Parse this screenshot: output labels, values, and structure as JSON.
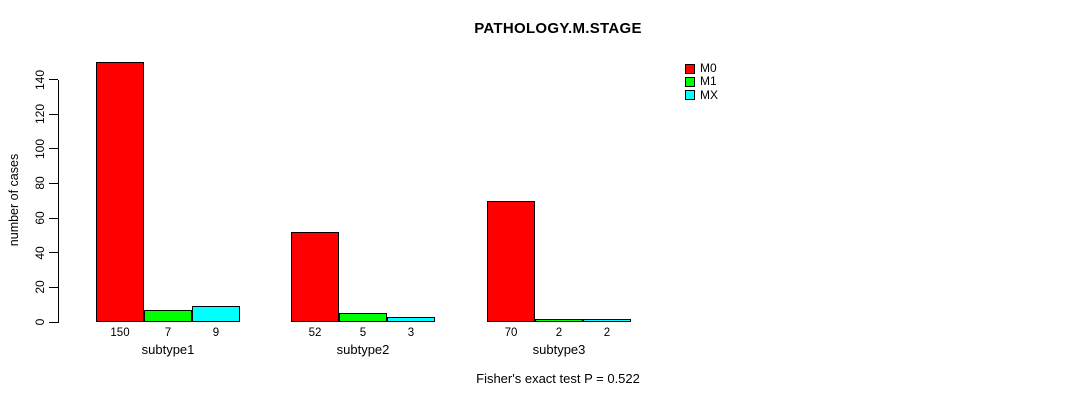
{
  "page": {
    "background": "#ffffff"
  },
  "chart_data": {
    "type": "bar",
    "title": "PATHOLOGY.M.STAGE",
    "categories": [
      "subtype1",
      "subtype2",
      "subtype3"
    ],
    "series": [
      {
        "name": "M0",
        "color": "#FF0000",
        "values": [
          150,
          52,
          70
        ]
      },
      {
        "name": "M1",
        "color": "#00FF00",
        "values": [
          7,
          5,
          2
        ]
      },
      {
        "name": "MX",
        "color": "#00FFFF",
        "values": [
          9,
          3,
          2
        ]
      }
    ],
    "bar_value_labels": [
      [
        "150",
        "7",
        "9"
      ],
      [
        "52",
        "5",
        "3"
      ],
      [
        "70",
        "2",
        "2"
      ]
    ],
    "xlabel": "",
    "ylabel": "number of cases",
    "yticks": [
      "0",
      "20",
      "40",
      "60",
      "80",
      "100",
      "120",
      "140"
    ],
    "ylim": [
      0,
      150
    ],
    "grid": false,
    "legend_position": "top-right",
    "annotation": "Fisher's exact test P = 0.522"
  }
}
